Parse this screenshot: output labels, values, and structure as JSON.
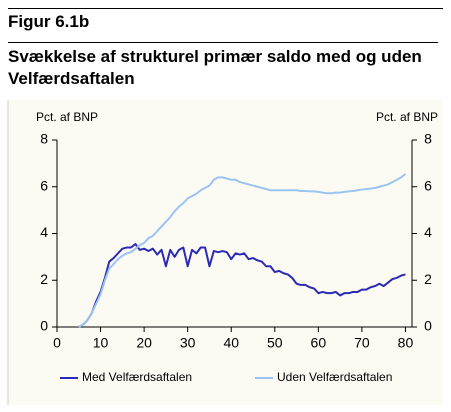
{
  "chart_data": {
    "type": "line",
    "figure_label": "Figur 6.1b",
    "title": "Svækkelse af strukturel primær saldo med og uden Velfærdsaftalen",
    "y_label": "Pct. af BNP",
    "y2_label": "Pct. af BNP",
    "x": [
      5,
      6,
      7,
      8,
      9,
      10,
      11,
      12,
      13,
      14,
      15,
      16,
      17,
      18,
      19,
      20,
      21,
      22,
      23,
      24,
      25,
      26,
      27,
      28,
      29,
      30,
      31,
      32,
      33,
      34,
      35,
      36,
      37,
      38,
      39,
      40,
      41,
      42,
      43,
      44,
      45,
      46,
      47,
      48,
      49,
      50,
      51,
      52,
      53,
      54,
      55,
      56,
      57,
      58,
      59,
      60,
      61,
      62,
      63,
      64,
      65,
      66,
      67,
      68,
      69,
      70,
      71,
      72,
      73,
      74,
      75,
      76,
      77,
      78,
      79,
      80
    ],
    "series": [
      {
        "name": "Med Velfærdsaftalen",
        "color": "#2a2ab4",
        "values": [
          0,
          0.1,
          0.3,
          0.6,
          1.1,
          1.5,
          2.1,
          2.8,
          2.95,
          3.15,
          3.35,
          3.4,
          3.4,
          3.55,
          3.3,
          3.35,
          3.25,
          3.35,
          3.1,
          3.3,
          2.6,
          3.3,
          3.0,
          3.3,
          3.4,
          2.6,
          3.3,
          3.15,
          3.4,
          3.4,
          2.6,
          3.25,
          3.2,
          3.25,
          3.2,
          2.9,
          3.15,
          3.1,
          3.15,
          2.9,
          2.95,
          2.85,
          2.8,
          2.6,
          2.6,
          2.35,
          2.4,
          2.3,
          2.25,
          2.1,
          1.85,
          1.8,
          1.8,
          1.7,
          1.65,
          1.45,
          1.5,
          1.45,
          1.45,
          1.5,
          1.35,
          1.45,
          1.45,
          1.5,
          1.5,
          1.6,
          1.6,
          1.7,
          1.75,
          1.85,
          1.75,
          1.9,
          2.05,
          2.1,
          2.2,
          2.25
        ]
      },
      {
        "name": "Uden Velfærdsaftalen",
        "color": "#9cc4f2",
        "values": [
          0,
          0.1,
          0.3,
          0.6,
          1.0,
          1.4,
          2.0,
          2.5,
          2.7,
          2.9,
          3.05,
          3.15,
          3.2,
          3.35,
          3.5,
          3.6,
          3.8,
          3.9,
          4.1,
          4.3,
          4.5,
          4.7,
          4.95,
          5.15,
          5.3,
          5.5,
          5.6,
          5.7,
          5.85,
          5.95,
          6.05,
          6.3,
          6.4,
          6.4,
          6.35,
          6.3,
          6.3,
          6.2,
          6.15,
          6.1,
          6.05,
          6.0,
          5.95,
          5.9,
          5.85,
          5.85,
          5.85,
          5.85,
          5.85,
          5.85,
          5.85,
          5.82,
          5.82,
          5.8,
          5.8,
          5.78,
          5.75,
          5.72,
          5.72,
          5.75,
          5.75,
          5.78,
          5.8,
          5.82,
          5.85,
          5.88,
          5.9,
          5.92,
          5.95,
          6.0,
          6.05,
          6.1,
          6.2,
          6.3,
          6.4,
          6.55
        ]
      }
    ],
    "xlim": [
      0,
      81.5
    ],
    "xticks": [
      0,
      10,
      20,
      30,
      40,
      50,
      60,
      70,
      80
    ],
    "ylim": [
      0,
      8
    ],
    "yticks": [
      0,
      2,
      4,
      6,
      8
    ],
    "y2lim": [
      0,
      8
    ],
    "y2ticks": [
      0,
      2,
      4,
      6,
      8
    ],
    "legend": "bottom"
  }
}
